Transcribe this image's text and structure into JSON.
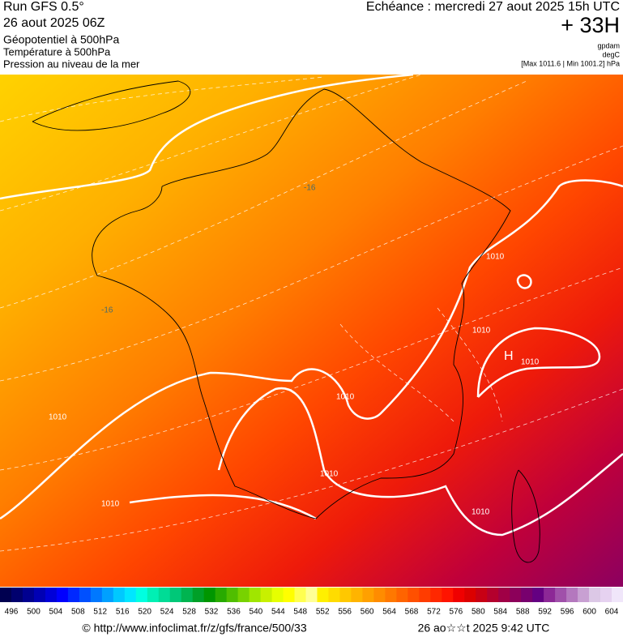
{
  "header": {
    "run": "Run GFS 0.5°",
    "run_date": "26 aout 2025 06Z",
    "field1": "Géopotentiel à 500hPa",
    "field2": "Température à 500hPa",
    "field3": "Pression au niveau de la mer",
    "valid": "Echéance : mercredi 27 aout 2025 15h UTC",
    "lead": "+ 33H",
    "unit1": "gpdam",
    "unit2": "degC",
    "pressure_range": "[Max 1011.6 | Min 1001.2] hPa"
  },
  "map": {
    "labels": [
      "1010",
      "1010",
      "1010",
      "1010",
      "1010",
      "1010",
      "1010",
      "1010",
      "-16",
      "-16",
      "H"
    ]
  },
  "colorbar": {
    "labels": [
      496,
      500,
      504,
      508,
      512,
      516,
      520,
      524,
      528,
      532,
      536,
      540,
      544,
      548,
      552,
      556,
      560,
      564,
      568,
      572,
      576,
      580,
      584,
      588,
      592,
      596,
      600,
      604
    ],
    "colors": [
      "#000050",
      "#00006e",
      "#000090",
      "#0000b4",
      "#0000d8",
      "#0000ff",
      "#0028ff",
      "#0050ff",
      "#0078ff",
      "#00a0ff",
      "#00c8ff",
      "#00e6ff",
      "#00ffe0",
      "#00f0b4",
      "#00dc96",
      "#00c878",
      "#00b450",
      "#00a028",
      "#009600",
      "#28aa00",
      "#50be00",
      "#78d200",
      "#a0e600",
      "#c8f000",
      "#e6ff00",
      "#ffff00",
      "#ffff50",
      "#ffff96",
      "#fff000",
      "#ffdc00",
      "#ffc800",
      "#ffb400",
      "#ffa000",
      "#ff8c00",
      "#ff7800",
      "#ff6400",
      "#ff5000",
      "#ff3c00",
      "#ff2800",
      "#ff1400",
      "#f00000",
      "#dc0000",
      "#c80014",
      "#b4002d",
      "#a00046",
      "#8c005a",
      "#78006e",
      "#640082",
      "#8c2896",
      "#a050aa",
      "#b478be",
      "#c8a0d2",
      "#dcc8e6",
      "#e6d2f0",
      "#f0e6fa"
    ]
  },
  "footer": {
    "source": "© http://www.infoclimat.fr/z/gfs/france/500/33",
    "generated": "26 ao☆☆t 2025  9:42 UTC"
  }
}
